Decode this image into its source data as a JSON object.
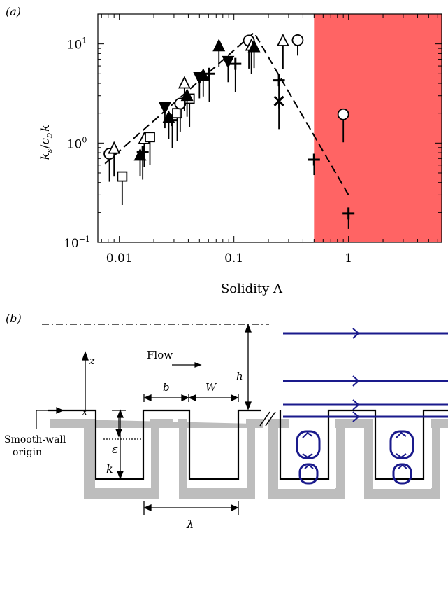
{
  "panel_a": {
    "label": "(a)",
    "chart_data": {
      "type": "scatter",
      "x_scale": "log",
      "y_scale": "log",
      "xlim": [
        0.0065,
        6.5
      ],
      "ylim": [
        0.1,
        20
      ],
      "xticks": [
        {
          "value": 0.01,
          "label": "0.01"
        },
        {
          "value": 0.1,
          "label": "0.1"
        },
        {
          "value": 1,
          "label": "1"
        }
      ],
      "yticks": [
        {
          "value": 0.1,
          "label": "10",
          "exp": "−1"
        },
        {
          "value": 1,
          "label": "10",
          "exp": "0"
        },
        {
          "value": 10,
          "label": "10",
          "exp": "1"
        }
      ],
      "xlabel": "Solidity Λ",
      "ylabel": "k",
      "ylabel_parts": {
        "k1": "k",
        "s": "s",
        "slash": "/",
        "c": "c",
        "D": "D",
        "k2": "k"
      },
      "shaded_region": {
        "x_from": 0.5,
        "x_to": 6.5,
        "color": "#ff6464"
      },
      "trend_line": [
        [
          0.0075,
          0.62
        ],
        [
          0.15,
          13
        ],
        [
          1.0,
          0.3
        ]
      ],
      "markers": [
        {
          "symbol": "circle",
          "x": 0.0082,
          "y": 0.78,
          "err_low": 0.4
        },
        {
          "symbol": "triangle",
          "x": 0.009,
          "y": 0.88,
          "err_low": 0.55
        },
        {
          "symbol": "square",
          "x": 0.0106,
          "y": 0.46,
          "err_low": 0.24
        },
        {
          "symbol": "triangle_filled",
          "x": 0.0152,
          "y": 0.75,
          "err_low": 0.45
        },
        {
          "symbol": "plus",
          "x": 0.016,
          "y": 0.82,
          "err_low": 0.5
        },
        {
          "symbol": "triangle",
          "x": 0.0165,
          "y": 1.1,
          "err_low": 0.6
        },
        {
          "symbol": "square",
          "x": 0.0185,
          "y": 1.15,
          "err_low": 0.75
        },
        {
          "symbol": "triangle_down_filled",
          "x": 0.025,
          "y": 2.3,
          "err_low": 1.6
        },
        {
          "symbol": "triangle_filled",
          "x": 0.027,
          "y": 1.8,
          "err_low": 1.3
        },
        {
          "symbol": "plus",
          "x": 0.029,
          "y": 1.7,
          "err_low": 1.3
        },
        {
          "symbol": "square",
          "x": 0.032,
          "y": 2.0,
          "err_low": 1.5
        },
        {
          "symbol": "circle",
          "x": 0.034,
          "y": 2.5,
          "err_low": 1.6
        },
        {
          "symbol": "triangle",
          "x": 0.037,
          "y": 4.0,
          "err_low": 2.6
        },
        {
          "symbol": "square",
          "x": 0.041,
          "y": 2.8,
          "err_low": 2.0
        },
        {
          "symbol": "triangle_filled",
          "x": 0.039,
          "y": 3.0,
          "err_low": 2.2
        },
        {
          "symbol": "triangle_down_filled",
          "x": 0.05,
          "y": 4.6,
          "err_low": 3.5
        },
        {
          "symbol": "triangle_filled",
          "x": 0.054,
          "y": 4.8,
          "err_low": 3.6
        },
        {
          "symbol": "plus",
          "x": 0.061,
          "y": 5.0,
          "err_low": 3.8
        },
        {
          "symbol": "triangle_filled",
          "x": 0.074,
          "y": 9.5,
          "err_low": 7.2
        },
        {
          "symbol": "triangle_down_filled",
          "x": 0.089,
          "y": 6.7,
          "err_low": 5.2
        },
        {
          "symbol": "plus",
          "x": 0.103,
          "y": 6.3,
          "err_low": 5.0
        },
        {
          "symbol": "circle",
          "x": 0.135,
          "y": 10.8,
          "err_low": 8.5
        },
        {
          "symbol": "triangle",
          "x": 0.142,
          "y": 9.6,
          "err_low": 7.5
        },
        {
          "symbol": "triangle_filled",
          "x": 0.15,
          "y": 9.3,
          "err_low": 7.3
        },
        {
          "symbol": "plus",
          "x": 0.247,
          "y": 4.3,
          "err_low": 3.3
        },
        {
          "symbol": "x",
          "x": 0.247,
          "y": 2.65,
          "err_low": 2.0
        },
        {
          "symbol": "triangle",
          "x": 0.268,
          "y": 10.7,
          "err_low": 8.4
        },
        {
          "symbol": "circle",
          "x": 0.36,
          "y": 10.9,
          "err_low": 10.9
        },
        {
          "symbol": "plus",
          "x": 0.5,
          "y": 0.68,
          "err_low": 0.68
        },
        {
          "symbol": "circle",
          "x": 0.9,
          "y": 1.95,
          "err_low": 1.05
        },
        {
          "symbol": "plus",
          "x": 1.0,
          "y": 0.195,
          "err_low": 0.195
        }
      ]
    }
  },
  "panel_b": {
    "label": "(b)",
    "labels": {
      "z": "z",
      "x": "x",
      "flow": "Flow",
      "h": "h",
      "b": "b",
      "W": "W",
      "epsilon": "ε",
      "k": "k",
      "lambda": "λ",
      "origin_line1": "Smooth-wall",
      "origin_line2": "origin"
    },
    "colors": {
      "wall": "#bdbdbd",
      "streamline": "#1a1a8c"
    }
  }
}
